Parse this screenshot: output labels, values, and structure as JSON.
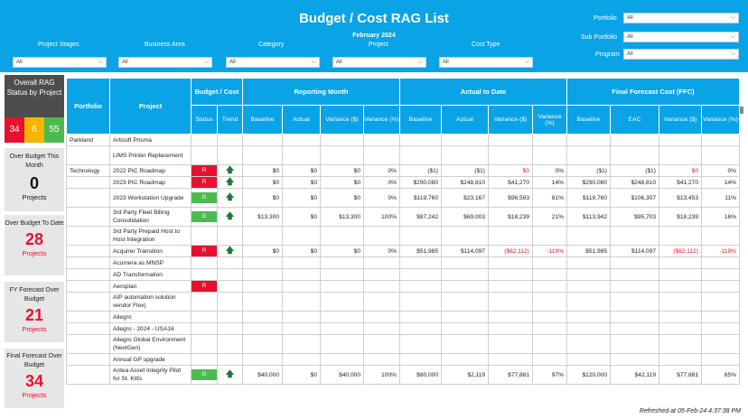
{
  "header": {
    "title": "Budget / Cost RAG List",
    "month": "February 2024"
  },
  "filters": {
    "project_stages": {
      "label": "Project Stages",
      "value": "All"
    },
    "business_area": {
      "label": "Business Area",
      "value": "All"
    },
    "category": {
      "label": "Category",
      "value": "All"
    },
    "project": {
      "label": "Project",
      "value": "All"
    },
    "cost_type": {
      "label": "Cost Type",
      "value": "All"
    },
    "portfolio": {
      "label": "Portfolio",
      "value": "All"
    },
    "sub_portfolio": {
      "label": "Sub Portfolio",
      "value": "All"
    },
    "program": {
      "label": "Program",
      "value": "All"
    }
  },
  "kpis": {
    "overall_rag": {
      "label": "Overall RAG Status by Project",
      "red": "34",
      "amber": "6",
      "green": "55"
    },
    "this_month": {
      "label": "Over Budget This Month",
      "value": "0",
      "unit": "Projects"
    },
    "to_date": {
      "label": "Over Budget To Date",
      "value": "28",
      "unit": "Projects"
    },
    "fy_forecast": {
      "label": "FY Forecast Over Budget",
      "value": "21",
      "unit": "Projects"
    },
    "final_forecast": {
      "label": "Final Forecast Over Budget",
      "value": "34",
      "unit": "Projects"
    }
  },
  "table": {
    "headers": {
      "portfolio": "Portfolio",
      "project": "Project",
      "budget_cost": "Budget / Cost",
      "reporting_month": "Reporting Month",
      "actual_to_date": "Actual to Date",
      "ffc": "Final Forecast Cost (FFC)",
      "status": "Status",
      "trend": "Trend",
      "baseline": "Baseline",
      "actual": "Actual",
      "variance_usd": "Variance ($)",
      "variance_pct": "Variance (%)",
      "eac": "EAC"
    },
    "rows": [
      {
        "portfolio": "Parkland",
        "project": "Artisoft Prisma",
        "status": "",
        "trend": "",
        "rm": [
          "",
          "",
          "",
          ""
        ],
        "atd": [
          "",
          "",
          "",
          ""
        ],
        "ffc": [
          "",
          "",
          "",
          ""
        ]
      },
      {
        "portfolio": "",
        "project": "LIMS Printer Replacement",
        "status": "",
        "trend": "",
        "rm": [
          "",
          "",
          "",
          ""
        ],
        "atd": [
          "",
          "",
          "",
          ""
        ],
        "ffc": [
          "",
          "",
          "",
          ""
        ]
      },
      {
        "portfolio": "Technology",
        "project": "2022 PIC Roadmap",
        "status": "R",
        "trend": "🡅",
        "rm": [
          "$0",
          "$0",
          "$0",
          "0%"
        ],
        "atd": [
          "($1)",
          "($1)",
          "$0",
          "0%"
        ],
        "ffc": [
          "($1)",
          "($1)",
          "$0",
          "0%"
        ],
        "neg": [
          "atd2",
          "ffc2"
        ]
      },
      {
        "portfolio": "",
        "project": "2023 PIC Roadmap",
        "status": "R",
        "trend": "🡅",
        "rm": [
          "$0",
          "$0",
          "$0",
          "0%"
        ],
        "atd": [
          "$290,080",
          "$248,810",
          "$41,270",
          "14%"
        ],
        "ffc": [
          "$290,080",
          "$248,810",
          "$41,270",
          "14%"
        ]
      },
      {
        "portfolio": "",
        "project": "2023 Workstation Upgrade",
        "status": "G",
        "trend": "🡅",
        "rm": [
          "$0",
          "$0",
          "$0",
          "0%"
        ],
        "atd": [
          "$119,760",
          "$23,167",
          "$96,593",
          "81%"
        ],
        "ffc": [
          "$119,760",
          "$106,307",
          "$13,453",
          "11%"
        ]
      },
      {
        "portfolio": "",
        "project": "3rd Party Fleet Billing Consolidation",
        "status": "G",
        "trend": "🡅",
        "rm": [
          "$13,300",
          "$0",
          "$13,300",
          "100%"
        ],
        "atd": [
          "$87,242",
          "$69,003",
          "$18,239",
          "21%"
        ],
        "ffc": [
          "$113,942",
          "$95,703",
          "$18,239",
          "16%"
        ]
      },
      {
        "portfolio": "",
        "project": "3rd Party Prepaid Host to Host Integration",
        "status": "",
        "trend": "",
        "rm": [
          "",
          "",
          "",
          ""
        ],
        "atd": [
          "",
          "",
          "",
          ""
        ],
        "ffc": [
          "",
          "",
          "",
          ""
        ]
      },
      {
        "portfolio": "",
        "project": "Acquirer Transition",
        "status": "R",
        "trend": "🡅",
        "rm": [
          "$0",
          "$0",
          "$0",
          "0%"
        ],
        "atd": [
          "$51,985",
          "$114,097",
          "($62,112)",
          "-119%"
        ],
        "ffc": [
          "$51,985",
          "$114,097",
          "($62,112)",
          "-119%"
        ],
        "neg": [
          "atd2",
          "atd3",
          "ffc2",
          "ffc3"
        ]
      },
      {
        "portfolio": "",
        "project": "Acumera as MNSP",
        "status": "",
        "trend": "",
        "rm": [
          "",
          "",
          "",
          ""
        ],
        "atd": [
          "",
          "",
          "",
          ""
        ],
        "ffc": [
          "",
          "",
          "",
          ""
        ]
      },
      {
        "portfolio": "",
        "project": "AD Transformation",
        "status": "",
        "trend": "",
        "rm": [
          "",
          "",
          "",
          ""
        ],
        "atd": [
          "",
          "",
          "",
          ""
        ],
        "ffc": [
          "",
          "",
          "",
          ""
        ]
      },
      {
        "portfolio": "",
        "project": "Aeroplan",
        "status": "R",
        "trend": "",
        "rm": [
          "",
          "",
          "",
          ""
        ],
        "atd": [
          "",
          "",
          "",
          ""
        ],
        "ffc": [
          "",
          "",
          "",
          ""
        ]
      },
      {
        "portfolio": "",
        "project": "AIP automation solution vendor Flex)",
        "status": "",
        "trend": "",
        "rm": [
          "",
          "",
          "",
          ""
        ],
        "atd": [
          "",
          "",
          "",
          ""
        ],
        "ffc": [
          "",
          "",
          "",
          ""
        ]
      },
      {
        "portfolio": "",
        "project": "Allegro",
        "status": "",
        "trend": "",
        "rm": [
          "",
          "",
          "",
          ""
        ],
        "atd": [
          "",
          "",
          "",
          ""
        ],
        "ffc": [
          "",
          "",
          "",
          ""
        ]
      },
      {
        "portfolio": "",
        "project": "Allegro - 2024 - USA16",
        "status": "",
        "trend": "",
        "rm": [
          "",
          "",
          "",
          ""
        ],
        "atd": [
          "",
          "",
          "",
          ""
        ],
        "ffc": [
          "",
          "",
          "",
          ""
        ]
      },
      {
        "portfolio": "",
        "project": "Allegro Global Environment (NextGen)",
        "status": "",
        "trend": "",
        "rm": [
          "",
          "",
          "",
          ""
        ],
        "atd": [
          "",
          "",
          "",
          ""
        ],
        "ffc": [
          "",
          "",
          "",
          ""
        ]
      },
      {
        "portfolio": "",
        "project": "Annual GP upgrade",
        "status": "",
        "trend": "",
        "rm": [
          "",
          "",
          "",
          ""
        ],
        "atd": [
          "",
          "",
          "",
          ""
        ],
        "ffc": [
          "",
          "",
          "",
          ""
        ]
      },
      {
        "portfolio": "",
        "project": "Antea Asset Integrity Pilot for St. Kitts",
        "status": "G",
        "trend": "🡅",
        "rm": [
          "$40,000",
          "$0",
          "$40,000",
          "100%"
        ],
        "atd": [
          "$80,000",
          "$2,119",
          "$77,881",
          "97%"
        ],
        "ffc": [
          "$120,000",
          "$42,119",
          "$77,881",
          "65%"
        ]
      }
    ]
  },
  "footer": {
    "refreshed": "Refreshed at  05-Feb-24 4:37:38 PM"
  },
  "colors": {
    "header_blue": "#0aa3e6",
    "red": "#e8112d",
    "amber": "#f7b500",
    "green": "#4cbb4f"
  }
}
